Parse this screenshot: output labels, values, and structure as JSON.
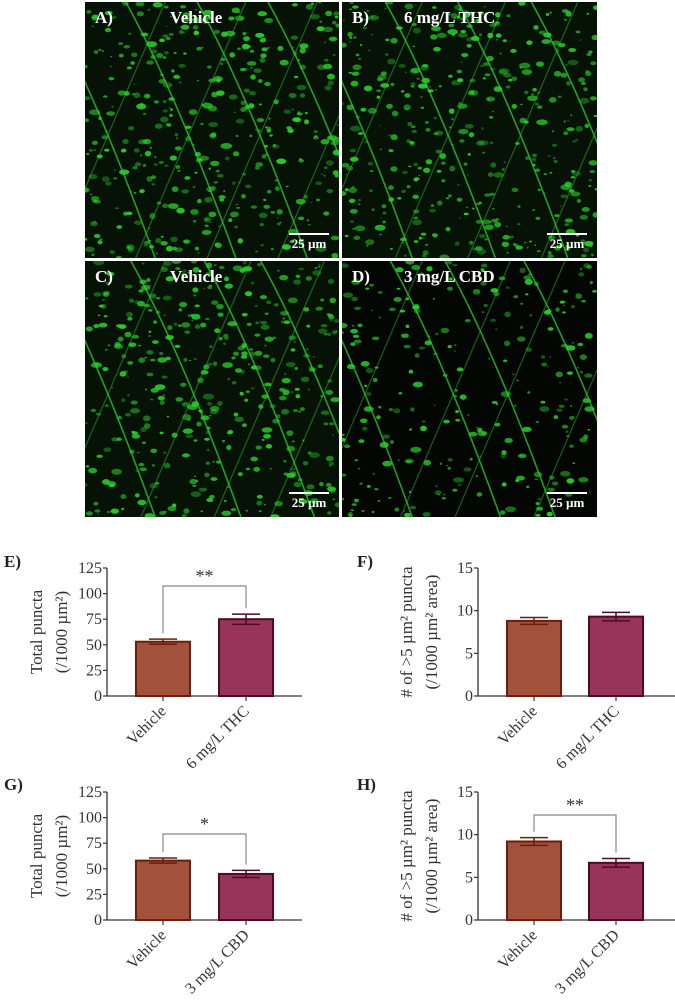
{
  "figure": {
    "microscopy_panels": [
      {
        "letter": "A)",
        "title": "Vehicle",
        "scale_bar": "25 µm"
      },
      {
        "letter": "B)",
        "title": "6 mg/L THC",
        "scale_bar": "25 µm"
      },
      {
        "letter": "C)",
        "title": "Vehicle",
        "scale_bar": "25 µm"
      },
      {
        "letter": "D)",
        "title": "3 mg/L CBD",
        "scale_bar": "25 µm"
      }
    ],
    "colors": {
      "vehicle_fill": "#A2523A",
      "vehicle_edge": "#6B1E0E",
      "treatment_fill": "#983458",
      "treatment_edge": "#4F0A25",
      "microscopy_bg": "#061206",
      "puncta_green": "#2BD12B",
      "bracket": "#888888"
    }
  },
  "chart_data": [
    {
      "panel": "E)",
      "type": "bar",
      "categories": [
        "Vehicle",
        "6 mg/L THC"
      ],
      "values": [
        53,
        75
      ],
      "errors": [
        2.5,
        5
      ],
      "ylabel_line1": "Total puncta",
      "ylabel_line2": "(/1000 µm²)",
      "ylim": [
        0,
        125
      ],
      "yticks": [
        0,
        25,
        50,
        75,
        100,
        125
      ],
      "significance": "**"
    },
    {
      "panel": "F)",
      "type": "bar",
      "categories": [
        "Vehicle",
        "6 mg/L THC"
      ],
      "values": [
        8.8,
        9.3
      ],
      "errors": [
        0.4,
        0.5
      ],
      "ylabel_line1": "# of >5 µm² puncta",
      "ylabel_line2": "(/1000 µm² area)",
      "ylim": [
        0,
        15
      ],
      "yticks": [
        0,
        5,
        10,
        15
      ],
      "significance": ""
    },
    {
      "panel": "G)",
      "type": "bar",
      "categories": [
        "Vehicle",
        "3 mg/L CBD"
      ],
      "values": [
        58,
        45
      ],
      "errors": [
        2.5,
        3.5
      ],
      "ylabel_line1": "Total puncta",
      "ylabel_line2": "(/1000 µm²)",
      "ylim": [
        0,
        125
      ],
      "yticks": [
        0,
        25,
        50,
        75,
        100,
        125
      ],
      "significance": "*"
    },
    {
      "panel": "H)",
      "type": "bar",
      "categories": [
        "Vehicle",
        "3 mg/L CBD"
      ],
      "values": [
        9.2,
        6.7
      ],
      "errors": [
        0.45,
        0.5
      ],
      "ylabel_line1": "# of >5 µm² puncta",
      "ylabel_line2": "(/1000 µm² area)",
      "ylim": [
        0,
        15
      ],
      "yticks": [
        0,
        5,
        10,
        15
      ],
      "significance": "**"
    }
  ]
}
